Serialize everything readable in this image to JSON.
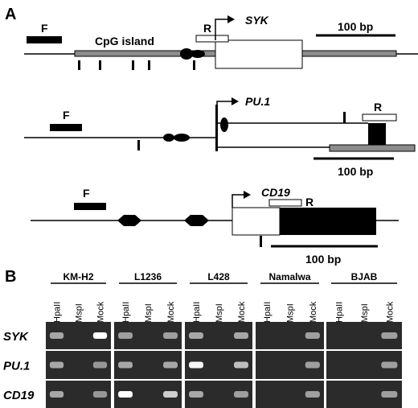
{
  "panel_a": {
    "label": "A",
    "syk": {
      "forward_label": "F",
      "reverse_label": "R",
      "gene_label": "SYK",
      "cpg_label": "CpG island",
      "scale_label": "100 bp"
    },
    "pu1": {
      "forward_label": "F",
      "reverse_label": "R",
      "gene_label": "PU.1",
      "scale_label": "100 bp"
    },
    "cd19": {
      "forward_label": "F",
      "reverse_label": "R",
      "gene_label": "CD19",
      "scale_label": "100 bp"
    }
  },
  "panel_b": {
    "label": "B",
    "cell_lines": [
      "KM-H2",
      "L1236",
      "L428",
      "Namalwa",
      "BJAB"
    ],
    "lanes": [
      "HpaII",
      "MspI",
      "Mock"
    ],
    "genes": [
      "SYK",
      "PU.1",
      "CD19"
    ],
    "background_color": "#2b2b2b",
    "band_color": "#ffffff",
    "band_intensity": [
      [
        [
          0.45,
          0.0,
          1.0
        ],
        [
          0.4,
          0.0,
          0.4
        ],
        [
          0.45,
          0.0,
          0.45
        ],
        [
          0.0,
          0.0,
          0.4
        ],
        [
          0.0,
          0.0,
          0.4
        ]
      ],
      [
        [
          0.45,
          0.0,
          0.35
        ],
        [
          0.45,
          0.0,
          0.45
        ],
        [
          0.95,
          0.0,
          0.6
        ],
        [
          0.0,
          0.0,
          0.4
        ],
        [
          0.0,
          0.0,
          0.4
        ]
      ],
      [
        [
          0.45,
          0.0,
          0.35
        ],
        [
          1.0,
          0.0,
          0.7
        ],
        [
          0.45,
          0.0,
          0.4
        ],
        [
          0.0,
          0.0,
          0.4
        ],
        [
          0.0,
          0.0,
          0.4
        ]
      ]
    ]
  }
}
